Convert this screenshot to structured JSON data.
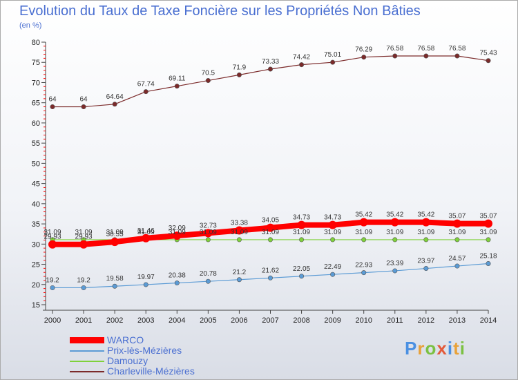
{
  "title": "Evolution du Taux de Taxe Foncière sur les Propriétés Non Bâties",
  "unit": "(en %)",
  "brand": {
    "text": "Proxiti",
    "letter_colors": [
      "#4a90e2",
      "#e8a23a",
      "#7cc142",
      "#e35a3a",
      "#4a90e2",
      "#e8a23a",
      "#7cc142"
    ]
  },
  "chart_data": {
    "type": "line",
    "x": [
      "2000",
      "2001",
      "2002",
      "2003",
      "2004",
      "2005",
      "2006",
      "2007",
      "2008",
      "2009",
      "2010",
      "2011",
      "2012",
      "2013",
      "2014"
    ],
    "ylim": [
      15,
      80
    ],
    "yticks": [
      15,
      20,
      25,
      30,
      35,
      40,
      45,
      50,
      55,
      60,
      65,
      70,
      75,
      80
    ],
    "grid": false,
    "legend_position": "bottom-left",
    "series": [
      {
        "name": "WARCO",
        "color": "#ff0000",
        "labels": [
          "29.93",
          "29.93",
          "30.55",
          "31.46",
          "32.09",
          "32.73",
          "33.38",
          "34.05",
          "34.73",
          "34.73",
          "35.42",
          "35.42",
          "35.42",
          "35.07",
          "35.07"
        ],
        "values": [
          29.93,
          29.93,
          30.55,
          31.46,
          32.09,
          32.73,
          33.38,
          34.05,
          34.73,
          34.73,
          35.42,
          35.42,
          35.42,
          35.07,
          35.07
        ]
      },
      {
        "name": "Prix-lès-Mézières",
        "color": "#5b9bd5",
        "labels": [
          "19.2",
          "19.2",
          "19.58",
          "19.97",
          "20.38",
          "20.78",
          "21.2",
          "21.62",
          "22.05",
          "22.49",
          "22.93",
          "23.39",
          "23.97",
          "24.57",
          "25.18"
        ],
        "values": [
          19.2,
          19.2,
          19.58,
          19.97,
          20.38,
          20.78,
          21.2,
          21.62,
          22.05,
          22.49,
          22.93,
          23.39,
          23.97,
          24.57,
          25.18
        ]
      },
      {
        "name": "Damouzy",
        "color": "#7fd13b",
        "labels": [
          "31.09",
          "31.09",
          "31.09",
          "31.09",
          "31.09",
          "31.09",
          "31.09",
          "31.09",
          "31.09",
          "31.09",
          "31.09",
          "31.09",
          "31.09",
          "31.09",
          "31.09"
        ],
        "values": [
          31.09,
          31.09,
          31.09,
          31.09,
          31.09,
          31.09,
          31.09,
          31.09,
          31.09,
          31.09,
          31.09,
          31.09,
          31.09,
          31.09,
          31.09
        ]
      },
      {
        "name": "Charleville-Mézières",
        "color": "#7b2a2a",
        "labels": [
          "64",
          "64",
          "64.64",
          "67.74",
          "69.11",
          "70.5",
          "71.9",
          "73.33",
          "74.42",
          "75.01",
          "76.29",
          "76.58",
          "76.58",
          "76.58",
          "75.43"
        ],
        "values": [
          64,
          64,
          64.64,
          67.74,
          69.11,
          70.5,
          71.9,
          73.33,
          74.42,
          75.01,
          76.29,
          76.58,
          76.58,
          76.58,
          75.43
        ]
      }
    ]
  }
}
